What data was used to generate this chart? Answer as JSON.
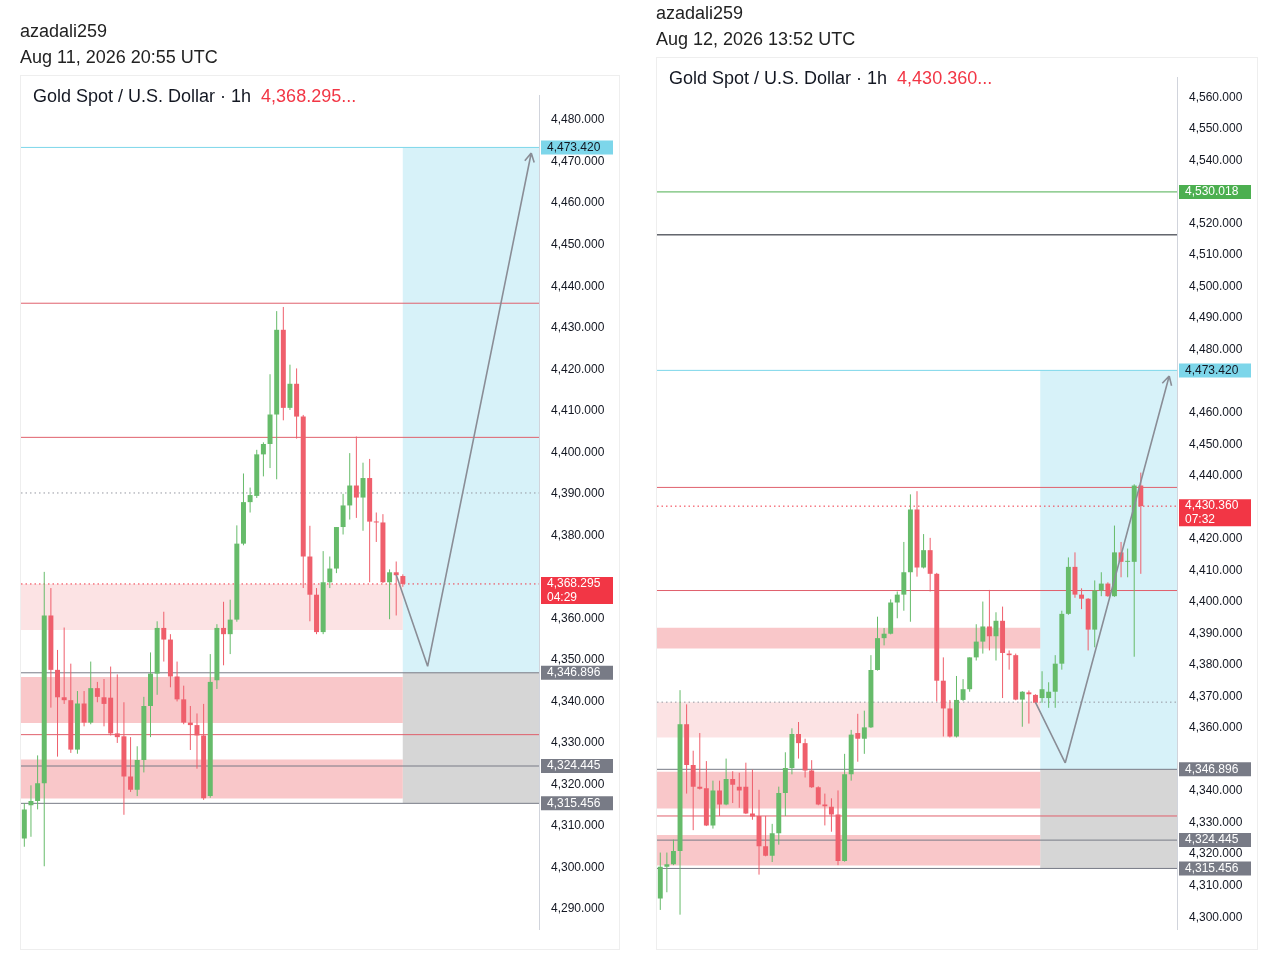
{
  "chart_data": [
    {
      "type": "candlestick",
      "title": "Gold Spot / U.S. Dollar · 1h",
      "subtitle": "4,368.295...",
      "annotations": [
        "azadali259",
        "Aug 11, 2026 20:55 UTC"
      ],
      "categories": [
        null,
        null,
        null,
        null,
        null,
        null,
        null,
        null,
        null,
        null,
        null,
        null,
        null,
        null,
        null,
        null,
        null,
        null,
        null,
        null,
        null,
        null,
        null,
        null,
        null,
        null,
        null,
        null,
        null,
        null,
        null,
        null,
        null,
        null,
        null,
        null,
        null,
        null,
        null,
        null,
        null,
        null,
        null,
        null,
        null,
        null,
        null,
        null,
        null,
        null,
        null,
        null,
        null,
        null,
        null,
        null,
        null,
        null,
        null,
        null,
        null,
        null,
        null,
        null,
        null,
        null,
        null,
        null,
        null,
        null,
        null,
        null,
        null,
        null,
        null,
        null,
        null,
        null
      ],
      "ohlc": [
        [
          4307,
          4315.5,
          4305,
          4314
        ],
        [
          4315,
          4319.8,
          4307.4,
          4316
        ],
        [
          4316,
          4327,
          4314,
          4320.3
        ],
        [
          4320.3,
          4371.2,
          4300.3,
          4360.7
        ],
        [
          4360.7,
          4367.3,
          4338.5,
          4347.6
        ],
        [
          4347.6,
          4352.4,
          4326.7,
          4341
        ],
        [
          4341,
          4357.8,
          4339.4,
          4340.3
        ],
        [
          4340.3,
          4349.1,
          4327.6,
          4328.4
        ],
        [
          4328.4,
          4342.5,
          4327.4,
          4339.5
        ],
        [
          4339.5,
          4342.5,
          4334,
          4334.9
        ],
        [
          4334.9,
          4349.6,
          4334.5,
          4343.2
        ],
        [
          4343.2,
          4344.7,
          4339.8,
          4341.1
        ],
        [
          4341,
          4345.4,
          4334,
          4339.4
        ],
        [
          4340.9,
          4348.4,
          4331.8,
          4332.3
        ],
        [
          4332.3,
          4346.5,
          4330,
          4331.4
        ],
        [
          4331.6,
          4339.8,
          4312.7,
          4321.9
        ],
        [
          4321.9,
          4331.4,
          4318.2,
          4318.7
        ],
        [
          4318.7,
          4329.2,
          4317.2,
          4325.9
        ],
        [
          4325.9,
          4341.1,
          4322.9,
          4338.9
        ],
        [
          4338.9,
          4351.8,
          4331.4,
          4346.7
        ],
        [
          4346.7,
          4359.3,
          4341.6,
          4357.7
        ],
        [
          4357.7,
          4361.6,
          4349.6,
          4354.9
        ],
        [
          4354.9,
          4356.2,
          4343.4,
          4346
        ],
        [
          4346,
          4349.6,
          4340,
          4340.5
        ],
        [
          4340.5,
          4343.8,
          4334.5,
          4334.9
        ],
        [
          4334.9,
          4338.9,
          4328.3,
          4334.3
        ],
        [
          4334.3,
          4337.1,
          4323.8,
          4331.8
        ],
        [
          4331.8,
          4339.4,
          4316.3,
          4316.7
        ],
        [
          4317.2,
          4351.4,
          4316.8,
          4344.7
        ],
        [
          4345.1,
          4358.6,
          4343,
          4357.7
        ],
        [
          4357.7,
          4364,
          4348.7,
          4356.2
        ],
        [
          4356.2,
          4364.5,
          4351.4,
          4359.7
        ],
        [
          4359.7,
          4382.4,
          4359.2,
          4378
        ],
        [
          4378,
          4394.9,
          4377.6,
          4388
        ],
        [
          4388,
          4391.5,
          4385.5,
          4389.7
        ],
        [
          4389.5,
          4400.6,
          4389,
          4399.5
        ],
        [
          4399.5,
          4402.4,
          4394.2,
          4402
        ],
        [
          4402,
          4418.8,
          4396.2,
          4409.1
        ],
        [
          4409.1,
          4434,
          4393.5,
          4429.5
        ],
        [
          4429.5,
          4435,
          4407.7,
          4410.7
        ],
        [
          4410.7,
          4421.1,
          4410.2,
          4416.5
        ],
        [
          4416.5,
          4420.2,
          4403.3,
          4408.6
        ],
        [
          4408.6,
          4409,
          4367.3,
          4374.9
        ],
        [
          4374.9,
          4382.3,
          4359.3,
          4365.7
        ],
        [
          4365.7,
          4367.3,
          4356.2,
          4356.7
        ],
        [
          4356.7,
          4376.2,
          4356.2,
          4368.7
        ],
        [
          4368.7,
          4374.9,
          4367.3,
          4372
        ],
        [
          4372,
          4382,
          4370.9,
          4382
        ],
        [
          4382,
          4390,
          4380.2,
          4387.2
        ],
        [
          4387.2,
          4399.8,
          4383.8,
          4392
        ],
        [
          4392,
          4403.8,
          4384.2,
          4389.1
        ],
        [
          4389.1,
          4397.5,
          4381.1,
          4393.8
        ],
        [
          4393.8,
          4398.4,
          4368.7,
          4383.3
        ],
        [
          4383.3,
          4385.5,
          4378.4,
          4383.1
        ],
        [
          4383.1,
          4385.1,
          4368.5,
          4368.7
        ],
        [
          4368.7,
          4371.8,
          4359.8,
          4371.1
        ],
        [
          4371.1,
          4373.7,
          4360.7,
          4370.4
        ],
        [
          4370.2,
          4370.6,
          4367.6,
          4368.3
        ],
        null,
        null,
        null,
        null,
        null,
        null,
        null,
        null,
        null,
        null,
        null,
        null,
        null,
        null,
        null,
        null,
        null,
        null,
        null,
        null
      ],
      "ylim": [
        4285,
        4486
      ],
      "yticks": [
        {
          "value": 4290,
          "label": "4,290.000"
        },
        {
          "value": 4300,
          "label": "4,300.000"
        },
        {
          "value": 4310,
          "label": "4,310.000"
        },
        {
          "value": 4320,
          "label": "4,320.000"
        },
        {
          "value": 4330,
          "label": "4,330.000"
        },
        {
          "value": 4340,
          "label": "4,340.000"
        },
        {
          "value": 4350,
          "label": "4,350.000"
        },
        {
          "value": 4360,
          "label": "4,360.000"
        },
        {
          "value": 4380,
          "label": "4,380.000"
        },
        {
          "value": 4390,
          "label": "4,390.000"
        },
        {
          "value": 4400,
          "label": "4,400.000"
        },
        {
          "value": 4410,
          "label": "4,410.000"
        },
        {
          "value": 4420,
          "label": "4,420.000"
        },
        {
          "value": 4430,
          "label": "4,430.000"
        },
        {
          "value": 4440,
          "label": "4,440.000"
        },
        {
          "value": 4450,
          "label": "4,450.000"
        },
        {
          "value": 4460,
          "label": "4,460.000"
        },
        {
          "value": 4470,
          "label": "4,470.000"
        },
        {
          "value": 4480,
          "label": "4,480.000"
        }
      ],
      "bands": [
        {
          "axis": "y",
          "from": 4346.896,
          "to": 4473.42,
          "color": "#cdeff7"
        },
        {
          "axis": "y",
          "from": 4315.456,
          "to": 4346.896,
          "color": "#cccccc"
        },
        {
          "axis": "y",
          "from": 4357.2,
          "to": 4368.3,
          "color": "#fbdcdd"
        },
        {
          "axis": "y",
          "from": 4334.8,
          "to": 4345.9,
          "color": "#f7b9bc"
        },
        {
          "axis": "y",
          "from": 4316.6,
          "to": 4326,
          "color": "#f7b9bc"
        }
      ],
      "ref_lines": [
        {
          "axis": "y",
          "value": 4435.9,
          "color": "#e0606c",
          "line_style": "solid"
        },
        {
          "axis": "y",
          "value": 4403.6,
          "color": "#e0606c",
          "line_style": "solid"
        },
        {
          "axis": "y",
          "value": 4332,
          "color": "#e0606c",
          "line_style": "solid"
        },
        {
          "axis": "y",
          "value": 4390.2,
          "color": "#9598a1",
          "line_style": "dotted"
        },
        {
          "axis": "y",
          "value": 4368.295,
          "label": "4,368.295\n04:29",
          "color": "#f23645",
          "line_style": "dotted"
        },
        {
          "axis": "y",
          "value": 4473.42,
          "label": "4,473.420",
          "color": "#7dd6ea",
          "line_style": "solid"
        },
        {
          "axis": "y",
          "value": 4346.896,
          "label": "4,346.896",
          "color": "#787b86",
          "line_style": "solid"
        },
        {
          "axis": "y",
          "value": 4324.445,
          "label": "4,324.445",
          "color": "#787b86",
          "line_style": "solid"
        },
        {
          "axis": "y",
          "value": 4315.456,
          "label": "4,315.456",
          "color": "#787b86",
          "line_style": "solid"
        }
      ]
    },
    {
      "type": "candlestick",
      "title": "Gold Spot / U.S. Dollar · 1h",
      "subtitle": "4,430.360...",
      "annotations": [
        "azadali259",
        "Aug 12, 2026 13:52 UTC"
      ],
      "categories": [
        null,
        null,
        null,
        null,
        null,
        null,
        null,
        null,
        null,
        null,
        null,
        null,
        null,
        null,
        null,
        null,
        null,
        null,
        null,
        null,
        null,
        null,
        null,
        null,
        null,
        null,
        null,
        null,
        null,
        null,
        null,
        null,
        null,
        null,
        null,
        null,
        null,
        null,
        null,
        null,
        null,
        null,
        null,
        null,
        null,
        null,
        null,
        null,
        null,
        null,
        null,
        null,
        null,
        null,
        null,
        null,
        null,
        null,
        null,
        null,
        null,
        null,
        null,
        null,
        null,
        null,
        null,
        null,
        null,
        null,
        null,
        null,
        null,
        null,
        null,
        null,
        null,
        null,
        null
      ],
      "ohlc": [
        [
          4305.9,
          4320.5,
          4302.3,
          4316
        ],
        [
          4316,
          4320.5,
          4307.9,
          4316.8
        ],
        [
          4316.8,
          4324.6,
          4316.5,
          4321
        ],
        [
          4321,
          4372,
          4300.8,
          4361.2
        ],
        [
          4361.2,
          4367.5,
          4339.2,
          4348.3
        ],
        [
          4348.3,
          4352.8,
          4327.6,
          4341.4
        ],
        [
          4341.4,
          4358.4,
          4340.5,
          4340.7
        ],
        [
          4340.9,
          4349.5,
          4328.9,
          4329.1
        ],
        [
          4329.1,
          4343.3,
          4328.1,
          4340.2
        ],
        [
          4340.2,
          4343.3,
          4332.1,
          4335.7
        ],
        [
          4335.7,
          4350.3,
          4335.5,
          4343.8
        ],
        [
          4343.8,
          4346.3,
          4336.2,
          4342
        ],
        [
          4341.4,
          4345.8,
          4334.7,
          4340.2
        ],
        [
          4341.4,
          4349,
          4332.7,
          4332.9
        ],
        [
          4332.9,
          4346.8,
          4330.9,
          4331.9
        ],
        [
          4332.1,
          4340.4,
          4313.5,
          4322.5
        ],
        [
          4322.5,
          4332.1,
          4319.3,
          4319.5
        ],
        [
          4319.5,
          4329.6,
          4317.5,
          4326.6
        ],
        [
          4326.6,
          4341.4,
          4323,
          4339.4
        ],
        [
          4339.4,
          4352.3,
          4332.1,
          4347.3
        ],
        [
          4347.3,
          4359.9,
          4345.3,
          4358.1
        ],
        [
          4358.1,
          4361.9,
          4350.3,
          4355.2
        ],
        [
          4355.2,
          4356.6,
          4344.3,
          4346.5
        ],
        [
          4346.5,
          4349.8,
          4341,
          4341.2
        ],
        [
          4341.2,
          4341.5,
          4335.5,
          4335.7
        ],
        [
          4335.7,
          4339.2,
          4329.1,
          4335.2
        ],
        [
          4335,
          4337.7,
          4327.1,
          4332.6
        ],
        [
          4332.6,
          4340.2,
          4316.5,
          4317.8
        ],
        [
          4317.8,
          4351.8,
          4317.6,
          4345.3
        ],
        [
          4345.3,
          4359.4,
          4343.3,
          4357.9
        ],
        [
          4358.4,
          4364.5,
          4349.3,
          4356.6
        ],
        [
          4356.6,
          4365.5,
          4351.8,
          4360.2
        ],
        [
          4360.2,
          4383.1,
          4360,
          4378.4
        ],
        [
          4378.4,
          4395.3,
          4378.2,
          4388.5
        ],
        [
          4388.5,
          4391.7,
          4386.2,
          4389.9
        ],
        [
          4389.9,
          4400.8,
          4389.7,
          4399.8
        ],
        [
          4399.8,
          4403.3,
          4394.8,
          4402.3
        ],
        [
          4402.3,
          4419,
          4397.2,
          4409.4
        ],
        [
          4409.4,
          4434.1,
          4393.7,
          4429.3
        ],
        [
          4429.3,
          4435.1,
          4408,
          4410.9
        ],
        [
          4410.9,
          4421.5,
          4410.6,
          4416.4
        ],
        [
          4416.4,
          4420.3,
          4403.3,
          4408.9
        ],
        [
          4408.9,
          4409.2,
          4368.4,
          4375
        ],
        [
          4375,
          4382.4,
          4357.3,
          4366.2
        ],
        [
          4366.2,
          4368.9,
          4357,
          4357.3
        ],
        [
          4357.3,
          4376.5,
          4357,
          4368.9
        ],
        [
          4368.9,
          4375.5,
          4368.5,
          4372.3
        ],
        [
          4372.3,
          4382.4,
          4371.5,
          4382.4
        ],
        [
          4382.4,
          4392.9,
          4381.4,
          4387.4
        ],
        [
          4387.4,
          4400.1,
          4383.6,
          4392.2
        ],
        [
          4392.2,
          4403.8,
          4384.6,
          4389.1
        ],
        [
          4389.1,
          4396.7,
          4381.4,
          4394
        ],
        [
          4394,
          4398.5,
          4369.5,
          4383.8
        ],
        [
          4383.6,
          4384.6,
          4378.5,
          4383.1
        ],
        [
          4383.1,
          4383.6,
          4368.8,
          4369
        ],
        [
          4369,
          4371.7,
          4360.4,
          4371.5
        ],
        [
          4371.3,
          4371.9,
          4361.4,
          4370.7
        ],
        [
          4370.5,
          4370.7,
          4367.8,
          4368
        ],
        [
          4369.5,
          4378,
          4368,
          4372.3
        ],
        [
          4369.5,
          4374.5,
          4366.4,
          4371.5
        ],
        [
          4371.5,
          4383.1,
          4366.4,
          4380.4
        ],
        [
          4380.4,
          4397.2,
          4378.5,
          4396.2
        ],
        [
          4396.2,
          4414.1,
          4395.9,
          4411.1
        ],
        [
          4411.1,
          4415.7,
          4401.3,
          4402.3
        ],
        [
          4402.3,
          4404.3,
          4397.7,
          4401
        ],
        [
          4401,
          4401.2,
          4384.6,
          4391.2
        ],
        [
          4391.2,
          4406.8,
          4385.6,
          4403.6
        ],
        [
          4403.6,
          4409.4,
          4401.8,
          4405.8
        ],
        [
          4405.8,
          4406.2,
          4401.6,
          4401.8
        ],
        [
          4401.8,
          4424.2,
          4401.6,
          4415.7
        ],
        [
          4415.7,
          4419,
          4407.8,
          4412.7
        ],
        [
          4412.7,
          4416.9,
          4407.8,
          4412.9
        ],
        [
          4412.7,
          4437.3,
          4382.6,
          4436.9
        ],
        [
          4436.9,
          4441,
          4408.9,
          4430.36
        ],
        null,
        null,
        null,
        null,
        null
      ],
      "ylim": [
        4296,
        4566.4
      ],
      "yticks": [
        {
          "value": 4300,
          "label": "4,300.000"
        },
        {
          "value": 4310,
          "label": "4,310.000"
        },
        {
          "value": 4320,
          "label": "4,320.000"
        },
        {
          "value": 4330,
          "label": "4,330.000"
        },
        {
          "value": 4340,
          "label": "4,340.000"
        },
        {
          "value": 4360,
          "label": "4,360.000"
        },
        {
          "value": 4370,
          "label": "4,370.000"
        },
        {
          "value": 4380,
          "label": "4,380.000"
        },
        {
          "value": 4390,
          "label": "4,390.000"
        },
        {
          "value": 4400,
          "label": "4,400.000"
        },
        {
          "value": 4410,
          "label": "4,410.000"
        },
        {
          "value": 4420,
          "label": "4,420.000"
        },
        {
          "value": 4430,
          "label": null
        },
        {
          "value": 4440,
          "label": "4,440.000"
        },
        {
          "value": 4450,
          "label": "4,450.000"
        },
        {
          "value": 4460,
          "label": "4,460.000"
        },
        {
          "value": 4480,
          "label": "4,480.000"
        },
        {
          "value": 4490,
          "label": "4,490.000"
        },
        {
          "value": 4500,
          "label": "4,500.000"
        },
        {
          "value": 4510,
          "label": "4,510.000"
        },
        {
          "value": 4520,
          "label": "4,520.000"
        },
        {
          "value": 4530,
          "label": null
        },
        {
          "value": 4540,
          "label": "4,540.000"
        },
        {
          "value": 4550,
          "label": "4,550.000"
        },
        {
          "value": 4560,
          "label": "4,560.000"
        }
      ],
      "bands": [
        {
          "axis": "y",
          "from": 4346.896,
          "to": 4473.42,
          "color": "#cdeff7"
        },
        {
          "axis": "y",
          "from": 4315.456,
          "to": 4346.896,
          "color": "#cccccc"
        },
        {
          "axis": "y",
          "from": 4357,
          "to": 4368.2,
          "color": "#fbdcdd"
        },
        {
          "axis": "y",
          "from": 4334.5,
          "to": 4346.1,
          "color": "#f7b9bc"
        },
        {
          "axis": "y",
          "from": 4316.4,
          "to": 4326.1,
          "color": "#f7b9bc"
        },
        {
          "axis": "y",
          "from": 4385.2,
          "to": 4391.8,
          "color": "#f7b9bc"
        }
      ],
      "ref_lines": [
        {
          "axis": "y",
          "value": 4516.4,
          "color": "#131722",
          "line_style": "solid"
        },
        {
          "axis": "y",
          "value": 4436.3,
          "color": "#e0606c",
          "line_style": "solid"
        },
        {
          "axis": "y",
          "value": 4403.6,
          "color": "#e0606c",
          "line_style": "solid"
        },
        {
          "axis": "y",
          "value": 4332.1,
          "color": "#e0606c",
          "line_style": "solid"
        },
        {
          "axis": "y",
          "value": 4368.2,
          "color": "#9598a1",
          "line_style": "dotted"
        },
        {
          "axis": "y",
          "value": 4430.36,
          "label": "4,430.360\n07:32",
          "color": "#f23645",
          "line_style": "dotted"
        },
        {
          "axis": "y",
          "value": 4530.018,
          "label": "4,530.018",
          "color": "#4caf50",
          "line_style": "solid"
        },
        {
          "axis": "y",
          "value": 4473.42,
          "label": "4,473.420",
          "color": "#7dd6ea",
          "line_style": "solid"
        },
        {
          "axis": "y",
          "value": 4346.896,
          "label": "4,346.896",
          "color": "#787b86",
          "line_style": "solid"
        },
        {
          "axis": "y",
          "value": 4324.445,
          "label": "4,324.445",
          "color": "#787b86",
          "line_style": "solid"
        },
        {
          "axis": "y",
          "value": 4315.456,
          "label": "4,315.456",
          "color": "#787b86",
          "line_style": "solid"
        }
      ]
    }
  ]
}
